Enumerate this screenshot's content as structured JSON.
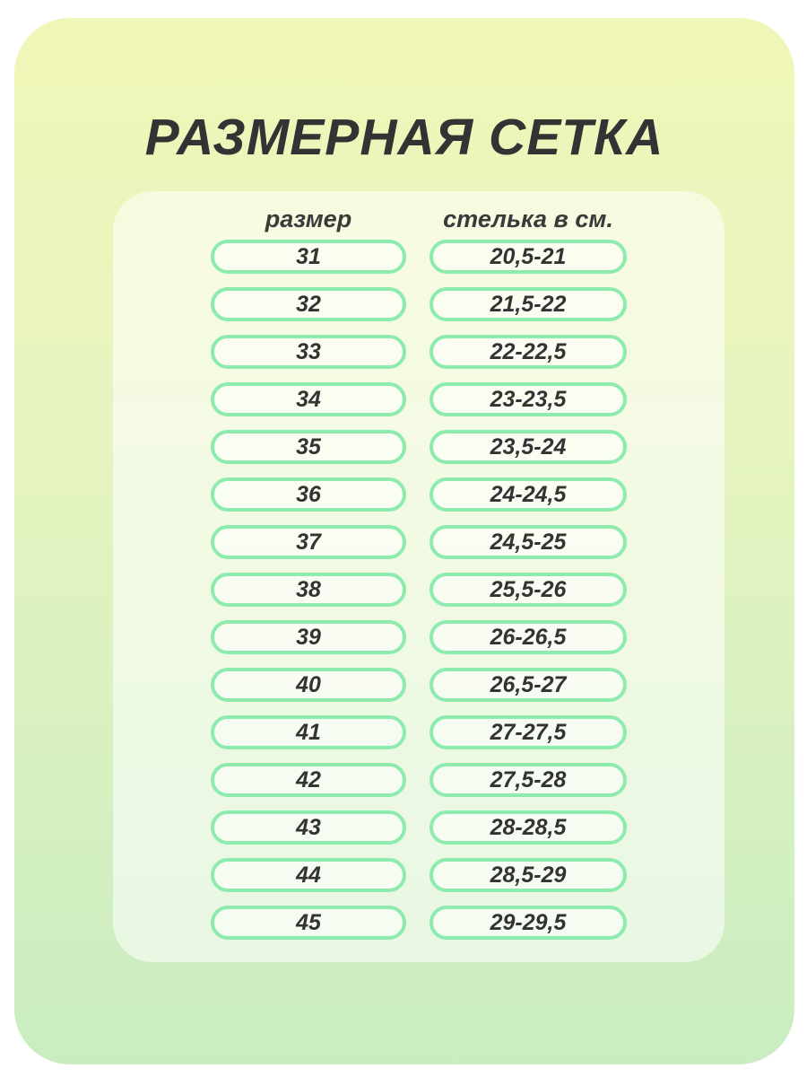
{
  "title": "РАЗМЕРНАЯ СЕТКА",
  "chart_data": {
    "type": "table",
    "title": "РАЗМЕРНАЯ СЕТКА",
    "columns": [
      "размер",
      "стелька в см."
    ],
    "rows": [
      [
        "31",
        "20,5-21"
      ],
      [
        "32",
        "21,5-22"
      ],
      [
        "33",
        "22-22,5"
      ],
      [
        "34",
        "23-23,5"
      ],
      [
        "35",
        "23,5-24"
      ],
      [
        "36",
        "24-24,5"
      ],
      [
        "37",
        "24,5-25"
      ],
      [
        "38",
        "25,5-26"
      ],
      [
        "39",
        "26-26,5"
      ],
      [
        "40",
        "26,5-27"
      ],
      [
        "41",
        "27-27,5"
      ],
      [
        "42",
        "27,5-28"
      ],
      [
        "43",
        "28-28,5"
      ],
      [
        "44",
        "28,5-29"
      ],
      [
        "45",
        "29-29,5"
      ]
    ]
  },
  "headers": {
    "size": "размер",
    "insole": "стелька в см."
  },
  "colors": {
    "card_gradient_top": "#f0f6b7",
    "card_gradient_bottom": "#c9edc1",
    "pill_border": "#8debae",
    "text": "#333333"
  }
}
